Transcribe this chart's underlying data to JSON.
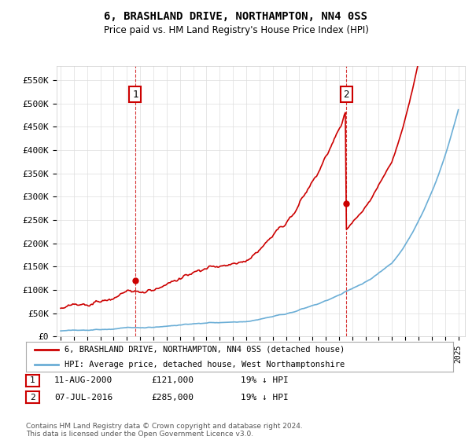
{
  "title": "6, BRASHLAND DRIVE, NORTHAMPTON, NN4 0SS",
  "subtitle": "Price paid vs. HM Land Registry's House Price Index (HPI)",
  "yticks": [
    0,
    50000,
    100000,
    150000,
    200000,
    250000,
    300000,
    350000,
    400000,
    450000,
    500000,
    550000
  ],
  "ylim": [
    0,
    580000
  ],
  "xlim_start": 1994.7,
  "xlim_end": 2025.5,
  "sale1_date": 2000.61,
  "sale1_price": 121000,
  "sale1_label": "1",
  "sale2_date": 2016.52,
  "sale2_price": 285000,
  "sale2_label": "2",
  "legend_entry1": "6, BRASHLAND DRIVE, NORTHAMPTON, NN4 0SS (detached house)",
  "legend_entry2": "HPI: Average price, detached house, West Northamptonshire",
  "table_row1": [
    "1",
    "11-AUG-2000",
    "£121,000",
    "19% ↓ HPI"
  ],
  "table_row2": [
    "2",
    "07-JUL-2016",
    "£285,000",
    "19% ↓ HPI"
  ],
  "footer": "Contains HM Land Registry data © Crown copyright and database right 2024.\nThis data is licensed under the Open Government Licence v3.0.",
  "line_color_hpi": "#6baed6",
  "line_color_price": "#cc0000",
  "dashed_line_color": "#cc0000",
  "background_color": "#ffffff",
  "grid_color": "#dddddd"
}
